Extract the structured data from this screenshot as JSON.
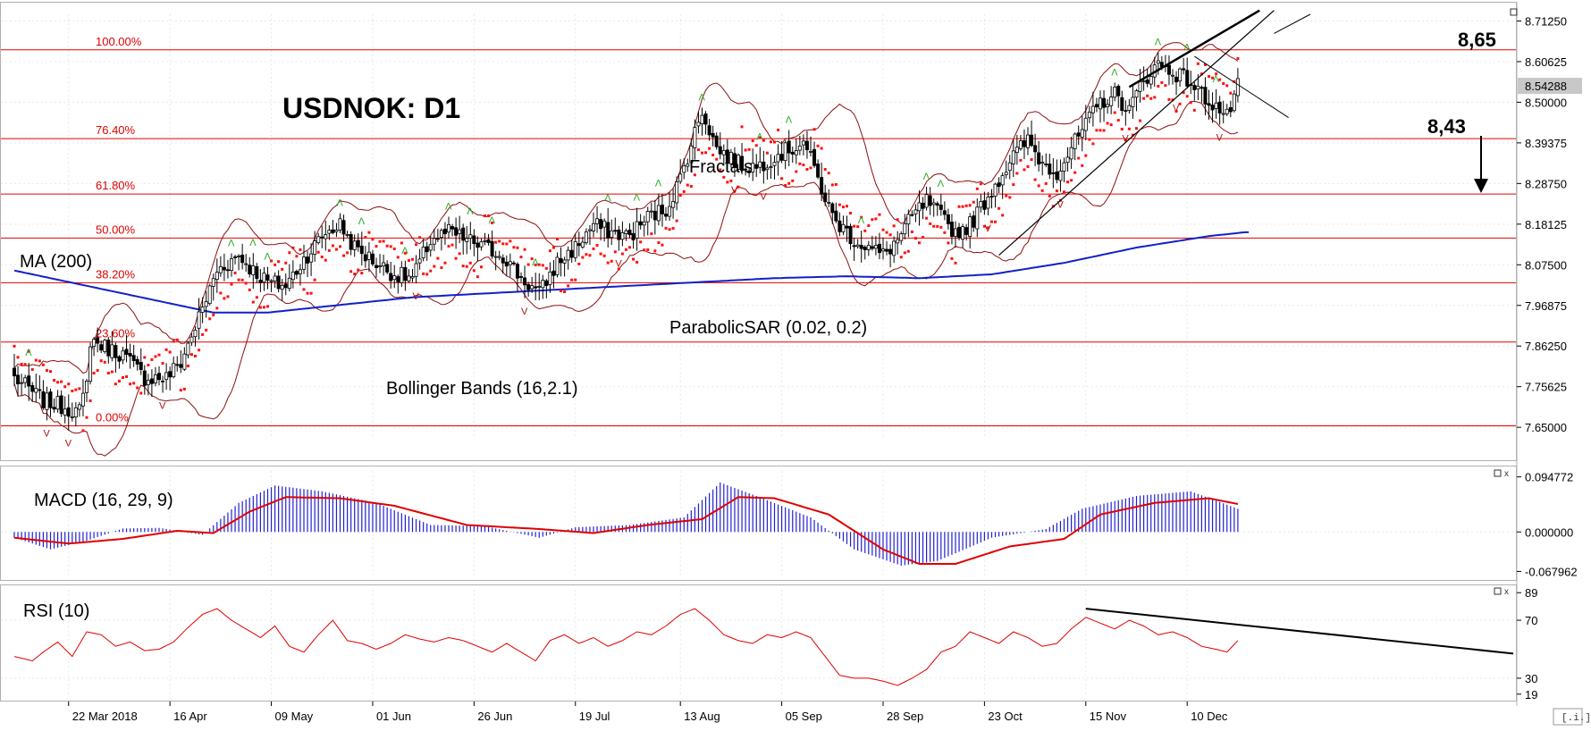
{
  "chart_data": {
    "type": "candlestick",
    "title": "USDNOK: D1",
    "timeframe": "D1",
    "symbol": "USDNOK",
    "x_ticks": [
      "22 Mar 2018",
      "16 Apr",
      "09 May",
      "01 Jun",
      "26 Jun",
      "19 Jul",
      "13 Aug",
      "05 Sep",
      "28 Sep",
      "23 Oct",
      "15 Nov",
      "10 Dec"
    ],
    "main_panel": {
      "y_ticks": [
        "8.71250",
        "8.60625",
        "8.50000",
        "8.39375",
        "8.28750",
        "8.18125",
        "8.07500",
        "7.96875",
        "7.86250",
        "7.75625",
        "7.65000"
      ],
      "ylim": [
        7.62,
        8.73
      ],
      "current_price": "8.54288",
      "close_path": [
        [
          0,
          7.78
        ],
        [
          8,
          7.72
        ],
        [
          15,
          7.7
        ],
        [
          18,
          7.69
        ],
        [
          20,
          7.76
        ],
        [
          21,
          7.88
        ],
        [
          25,
          7.86
        ],
        [
          30,
          7.84
        ],
        [
          36,
          7.78
        ],
        [
          42,
          7.78
        ],
        [
          46,
          7.82
        ],
        [
          52,
          7.96
        ],
        [
          56,
          8.06
        ],
        [
          62,
          8.1
        ],
        [
          66,
          8.06
        ],
        [
          70,
          8.03
        ],
        [
          75,
          8.02
        ],
        [
          80,
          8.09
        ],
        [
          86,
          8.16
        ],
        [
          90,
          8.18
        ],
        [
          94,
          8.12
        ],
        [
          100,
          8.08
        ],
        [
          105,
          8.05
        ],
        [
          110,
          8.04
        ],
        [
          115,
          8.14
        ],
        [
          120,
          8.16
        ],
        [
          125,
          8.14
        ],
        [
          130,
          8.12
        ],
        [
          135,
          8.1
        ],
        [
          140,
          8.04
        ],
        [
          145,
          8.0
        ],
        [
          150,
          8.08
        ],
        [
          155,
          8.12
        ],
        [
          160,
          8.18
        ],
        [
          165,
          8.16
        ],
        [
          170,
          8.15
        ],
        [
          175,
          8.2
        ],
        [
          180,
          8.22
        ],
        [
          184,
          8.3
        ],
        [
          188,
          8.42
        ],
        [
          190,
          8.48
        ],
        [
          194,
          8.38
        ],
        [
          200,
          8.34
        ],
        [
          205,
          8.33
        ],
        [
          210,
          8.36
        ],
        [
          215,
          8.38
        ],
        [
          218,
          8.4
        ],
        [
          222,
          8.3
        ],
        [
          226,
          8.2
        ],
        [
          232,
          8.14
        ],
        [
          236,
          8.12
        ],
        [
          240,
          8.1
        ],
        [
          244,
          8.14
        ],
        [
          248,
          8.2
        ],
        [
          252,
          8.24
        ],
        [
          256,
          8.2
        ],
        [
          260,
          8.16
        ],
        [
          264,
          8.18
        ],
        [
          268,
          8.24
        ],
        [
          272,
          8.3
        ],
        [
          276,
          8.36
        ],
        [
          280,
          8.4
        ],
        [
          284,
          8.34
        ],
        [
          288,
          8.32
        ],
        [
          292,
          8.38
        ],
        [
          296,
          8.44
        ],
        [
          300,
          8.5
        ],
        [
          304,
          8.52
        ],
        [
          308,
          8.48
        ],
        [
          312,
          8.56
        ],
        [
          316,
          8.6
        ],
        [
          320,
          8.58
        ],
        [
          324,
          8.56
        ],
        [
          328,
          8.52
        ],
        [
          332,
          8.49
        ],
        [
          335,
          8.46
        ],
        [
          338,
          8.54
        ]
      ],
      "ma200_path": [
        [
          0,
          8.06
        ],
        [
          20,
          8.02
        ],
        [
          40,
          7.98
        ],
        [
          55,
          7.95
        ],
        [
          70,
          7.95
        ],
        [
          90,
          7.97
        ],
        [
          110,
          7.99
        ],
        [
          130,
          8.0
        ],
        [
          150,
          8.01
        ],
        [
          170,
          8.02
        ],
        [
          190,
          8.03
        ],
        [
          210,
          8.04
        ],
        [
          230,
          8.045
        ],
        [
          250,
          8.04
        ],
        [
          270,
          8.05
        ],
        [
          290,
          8.08
        ],
        [
          310,
          8.12
        ],
        [
          330,
          8.15
        ],
        [
          340,
          8.16
        ]
      ],
      "fibonacci": [
        {
          "label": "100.00%",
          "price": 8.637
        },
        {
          "label": "76.40%",
          "price": 8.405
        },
        {
          "label": "61.80%",
          "price": 8.26
        },
        {
          "label": "50.00%",
          "price": 8.145
        },
        {
          "label": "38.20%",
          "price": 8.028
        },
        {
          "label": "23.60%",
          "price": 7.873
        },
        {
          "label": "0.00%",
          "price": 7.654
        }
      ]
    },
    "macd_panel": {
      "y_ticks": [
        "0.094772",
        "0.000000",
        "-0.067962"
      ],
      "ylim": [
        -0.075,
        0.105
      ],
      "signal_path": [
        [
          0,
          -0.01
        ],
        [
          15,
          -0.02
        ],
        [
          30,
          -0.012
        ],
        [
          45,
          0.002
        ],
        [
          55,
          -0.002
        ],
        [
          65,
          0.035
        ],
        [
          75,
          0.06
        ],
        [
          90,
          0.058
        ],
        [
          105,
          0.045
        ],
        [
          125,
          0.012
        ],
        [
          145,
          0.005
        ],
        [
          160,
          -0.002
        ],
        [
          175,
          0.012
        ],
        [
          190,
          0.022
        ],
        [
          200,
          0.06
        ],
        [
          210,
          0.058
        ],
        [
          225,
          0.03
        ],
        [
          240,
          -0.03
        ],
        [
          250,
          -0.055
        ],
        [
          260,
          -0.055
        ],
        [
          275,
          -0.025
        ],
        [
          290,
          -0.012
        ],
        [
          300,
          0.03
        ],
        [
          315,
          0.05
        ],
        [
          330,
          0.058
        ],
        [
          338,
          0.048
        ]
      ],
      "hist_path": [
        [
          0,
          -0.01
        ],
        [
          10,
          -0.03
        ],
        [
          20,
          -0.015
        ],
        [
          30,
          0.006
        ],
        [
          40,
          0.007
        ],
        [
          52,
          -0.005
        ],
        [
          62,
          0.05
        ],
        [
          72,
          0.08
        ],
        [
          85,
          0.07
        ],
        [
          100,
          0.05
        ],
        [
          115,
          0.012
        ],
        [
          130,
          0.01
        ],
        [
          145,
          -0.01
        ],
        [
          155,
          0.008
        ],
        [
          170,
          0.012
        ],
        [
          185,
          0.025
        ],
        [
          195,
          0.085
        ],
        [
          205,
          0.062
        ],
        [
          220,
          0.025
        ],
        [
          232,
          -0.03
        ],
        [
          245,
          -0.058
        ],
        [
          255,
          -0.05
        ],
        [
          270,
          -0.01
        ],
        [
          285,
          0.005
        ],
        [
          295,
          0.04
        ],
        [
          310,
          0.062
        ],
        [
          325,
          0.07
        ],
        [
          338,
          0.04
        ]
      ]
    },
    "rsi_panel": {
      "y_ticks": [
        "89",
        "70",
        "30",
        "19"
      ],
      "ylim": [
        17,
        91
      ],
      "path": [
        [
          0,
          45
        ],
        [
          5,
          42
        ],
        [
          8,
          48
        ],
        [
          12,
          55
        ],
        [
          16,
          45
        ],
        [
          20,
          62
        ],
        [
          24,
          60
        ],
        [
          28,
          52
        ],
        [
          32,
          55
        ],
        [
          36,
          49
        ],
        [
          40,
          50
        ],
        [
          44,
          55
        ],
        [
          48,
          65
        ],
        [
          52,
          74
        ],
        [
          56,
          78
        ],
        [
          60,
          70
        ],
        [
          64,
          64
        ],
        [
          68,
          58
        ],
        [
          72,
          66
        ],
        [
          76,
          52
        ],
        [
          80,
          48
        ],
        [
          84,
          60
        ],
        [
          88,
          70
        ],
        [
          92,
          56
        ],
        [
          96,
          54
        ],
        [
          100,
          50
        ],
        [
          104,
          54
        ],
        [
          108,
          60
        ],
        [
          112,
          57
        ],
        [
          116,
          55
        ],
        [
          120,
          58
        ],
        [
          124,
          56
        ],
        [
          128,
          52
        ],
        [
          132,
          48
        ],
        [
          136,
          54
        ],
        [
          140,
          48
        ],
        [
          144,
          42
        ],
        [
          148,
          56
        ],
        [
          152,
          60
        ],
        [
          156,
          54
        ],
        [
          160,
          58
        ],
        [
          164,
          52
        ],
        [
          168,
          56
        ],
        [
          172,
          62
        ],
        [
          176,
          60
        ],
        [
          180,
          66
        ],
        [
          184,
          74
        ],
        [
          188,
          78
        ],
        [
          192,
          70
        ],
        [
          196,
          60
        ],
        [
          200,
          56
        ],
        [
          204,
          54
        ],
        [
          208,
          60
        ],
        [
          212,
          58
        ],
        [
          216,
          62
        ],
        [
          220,
          58
        ],
        [
          224,
          45
        ],
        [
          228,
          32
        ],
        [
          232,
          30
        ],
        [
          236,
          30
        ],
        [
          240,
          28
        ],
        [
          244,
          25
        ],
        [
          248,
          30
        ],
        [
          252,
          36
        ],
        [
          256,
          48
        ],
        [
          260,
          52
        ],
        [
          264,
          62
        ],
        [
          268,
          58
        ],
        [
          272,
          54
        ],
        [
          276,
          62
        ],
        [
          280,
          58
        ],
        [
          284,
          52
        ],
        [
          288,
          54
        ],
        [
          292,
          64
        ],
        [
          296,
          72
        ],
        [
          300,
          68
        ],
        [
          304,
          64
        ],
        [
          308,
          70
        ],
        [
          312,
          66
        ],
        [
          316,
          60
        ],
        [
          320,
          62
        ],
        [
          324,
          58
        ],
        [
          328,
          52
        ],
        [
          332,
          50
        ],
        [
          335,
          48
        ],
        [
          338,
          56
        ]
      ],
      "trendline": [
        [
          296,
          78
        ],
        [
          340,
          59
        ]
      ]
    }
  },
  "labels": {
    "title": "USDNOK: D1",
    "ma": "MA (200)",
    "bollinger": "Bollinger Bands (16,2.1)",
    "fractals": "Fractals",
    "parabolic": "ParabolicSAR (0.02, 0.2)",
    "macd": "MACD (16, 29, 9)",
    "rsi": "RSI (10)",
    "target_high": "8,65",
    "target_low": "8,43"
  },
  "colors": {
    "grid": "#e8e8e8",
    "fib": "#e00000",
    "ma": "#1020c8",
    "bands": "#8b1010",
    "sar": "#ff1010",
    "fractal": "#22aa22",
    "fractal_down": "#b01010",
    "macd_hist": "#2020d0",
    "macd_signal": "#e00000",
    "rsi": "#e00000"
  }
}
